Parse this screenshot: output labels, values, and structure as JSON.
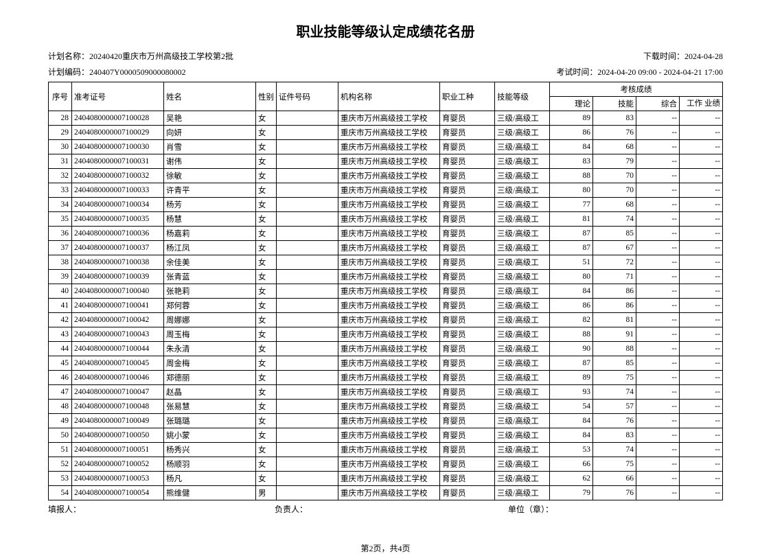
{
  "title": "职业技能等级认定成绩花名册",
  "meta": {
    "plan_name_label": "计划名称：",
    "plan_name": "20240420重庆市万州高级技工学校第2批",
    "download_label": "下载时间：",
    "download_time": "2024-04-28",
    "plan_code_label": "计划编码：",
    "plan_code": "240407Y0000509000080002",
    "exam_time_label": "考试时间：",
    "exam_time": "2024-04-20 09:00 - 2024-04-21 17:00"
  },
  "headers": {
    "seq": "序号",
    "exam_no": "准考证号",
    "name": "姓名",
    "sex": "性别",
    "id_no": "证件号码",
    "org": "机构名称",
    "occupation": "职业工种",
    "level": "技能等级",
    "score_group": "考核成绩",
    "theory": "理论",
    "skill": "技能",
    "comp": "综合",
    "work": "工作\n业绩"
  },
  "footer": {
    "filler": "填报人：",
    "responsible": "负责人：",
    "unit": "单位（章）："
  },
  "pager": "第2页，共4页",
  "common": {
    "org": "重庆市万州高级技工学校",
    "occupation": "育婴员",
    "level": "三级/高级工",
    "dash": "--"
  },
  "rows": [
    {
      "seq": "28",
      "exam": "2404080000007100028",
      "name": "吴艳",
      "sex": "女",
      "theory": "89",
      "skill": "83"
    },
    {
      "seq": "29",
      "exam": "2404080000007100029",
      "name": "向妍",
      "sex": "女",
      "theory": "86",
      "skill": "76"
    },
    {
      "seq": "30",
      "exam": "2404080000007100030",
      "name": "肖雪",
      "sex": "女",
      "theory": "84",
      "skill": "68"
    },
    {
      "seq": "31",
      "exam": "2404080000007100031",
      "name": "谢伟",
      "sex": "女",
      "theory": "83",
      "skill": "79"
    },
    {
      "seq": "32",
      "exam": "2404080000007100032",
      "name": "徐敏",
      "sex": "女",
      "theory": "88",
      "skill": "70"
    },
    {
      "seq": "33",
      "exam": "2404080000007100033",
      "name": "许青平",
      "sex": "女",
      "theory": "80",
      "skill": "70"
    },
    {
      "seq": "34",
      "exam": "2404080000007100034",
      "name": "杨芳",
      "sex": "女",
      "theory": "77",
      "skill": "68"
    },
    {
      "seq": "35",
      "exam": "2404080000007100035",
      "name": "杨慧",
      "sex": "女",
      "theory": "81",
      "skill": "74"
    },
    {
      "seq": "36",
      "exam": "2404080000007100036",
      "name": "杨嘉莉",
      "sex": "女",
      "theory": "87",
      "skill": "85"
    },
    {
      "seq": "37",
      "exam": "2404080000007100037",
      "name": "杨江凤",
      "sex": "女",
      "theory": "87",
      "skill": "67"
    },
    {
      "seq": "38",
      "exam": "2404080000007100038",
      "name": "余佳美",
      "sex": "女",
      "theory": "51",
      "skill": "72"
    },
    {
      "seq": "39",
      "exam": "2404080000007100039",
      "name": "张青蓝",
      "sex": "女",
      "theory": "80",
      "skill": "71"
    },
    {
      "seq": "40",
      "exam": "2404080000007100040",
      "name": "张艳莉",
      "sex": "女",
      "theory": "84",
      "skill": "86"
    },
    {
      "seq": "41",
      "exam": "2404080000007100041",
      "name": "郑何蓉",
      "sex": "女",
      "theory": "86",
      "skill": "86"
    },
    {
      "seq": "42",
      "exam": "2404080000007100042",
      "name": "周娜娜",
      "sex": "女",
      "theory": "82",
      "skill": "81"
    },
    {
      "seq": "43",
      "exam": "2404080000007100043",
      "name": "周玉梅",
      "sex": "女",
      "theory": "88",
      "skill": "91"
    },
    {
      "seq": "44",
      "exam": "2404080000007100044",
      "name": "朱永清",
      "sex": "女",
      "theory": "90",
      "skill": "88"
    },
    {
      "seq": "45",
      "exam": "2404080000007100045",
      "name": "周金梅",
      "sex": "女",
      "theory": "87",
      "skill": "85"
    },
    {
      "seq": "46",
      "exam": "2404080000007100046",
      "name": "郑德丽",
      "sex": "女",
      "theory": "89",
      "skill": "75"
    },
    {
      "seq": "47",
      "exam": "2404080000007100047",
      "name": "赵晶",
      "sex": "女",
      "theory": "93",
      "skill": "74"
    },
    {
      "seq": "48",
      "exam": "2404080000007100048",
      "name": "张易慧",
      "sex": "女",
      "theory": "54",
      "skill": "57"
    },
    {
      "seq": "49",
      "exam": "2404080000007100049",
      "name": "张璐璐",
      "sex": "女",
      "theory": "84",
      "skill": "76"
    },
    {
      "seq": "50",
      "exam": "2404080000007100050",
      "name": "姚小蒙",
      "sex": "女",
      "theory": "84",
      "skill": "83"
    },
    {
      "seq": "51",
      "exam": "2404080000007100051",
      "name": "杨秀兴",
      "sex": "女",
      "theory": "53",
      "skill": "74"
    },
    {
      "seq": "52",
      "exam": "2404080000007100052",
      "name": "杨顺羽",
      "sex": "女",
      "theory": "66",
      "skill": "75"
    },
    {
      "seq": "53",
      "exam": "2404080000007100053",
      "name": "杨凡",
      "sex": "女",
      "theory": "62",
      "skill": "66"
    },
    {
      "seq": "54",
      "exam": "2404080000007100054",
      "name": "熊维健",
      "sex": "男",
      "theory": "79",
      "skill": "76"
    }
  ]
}
